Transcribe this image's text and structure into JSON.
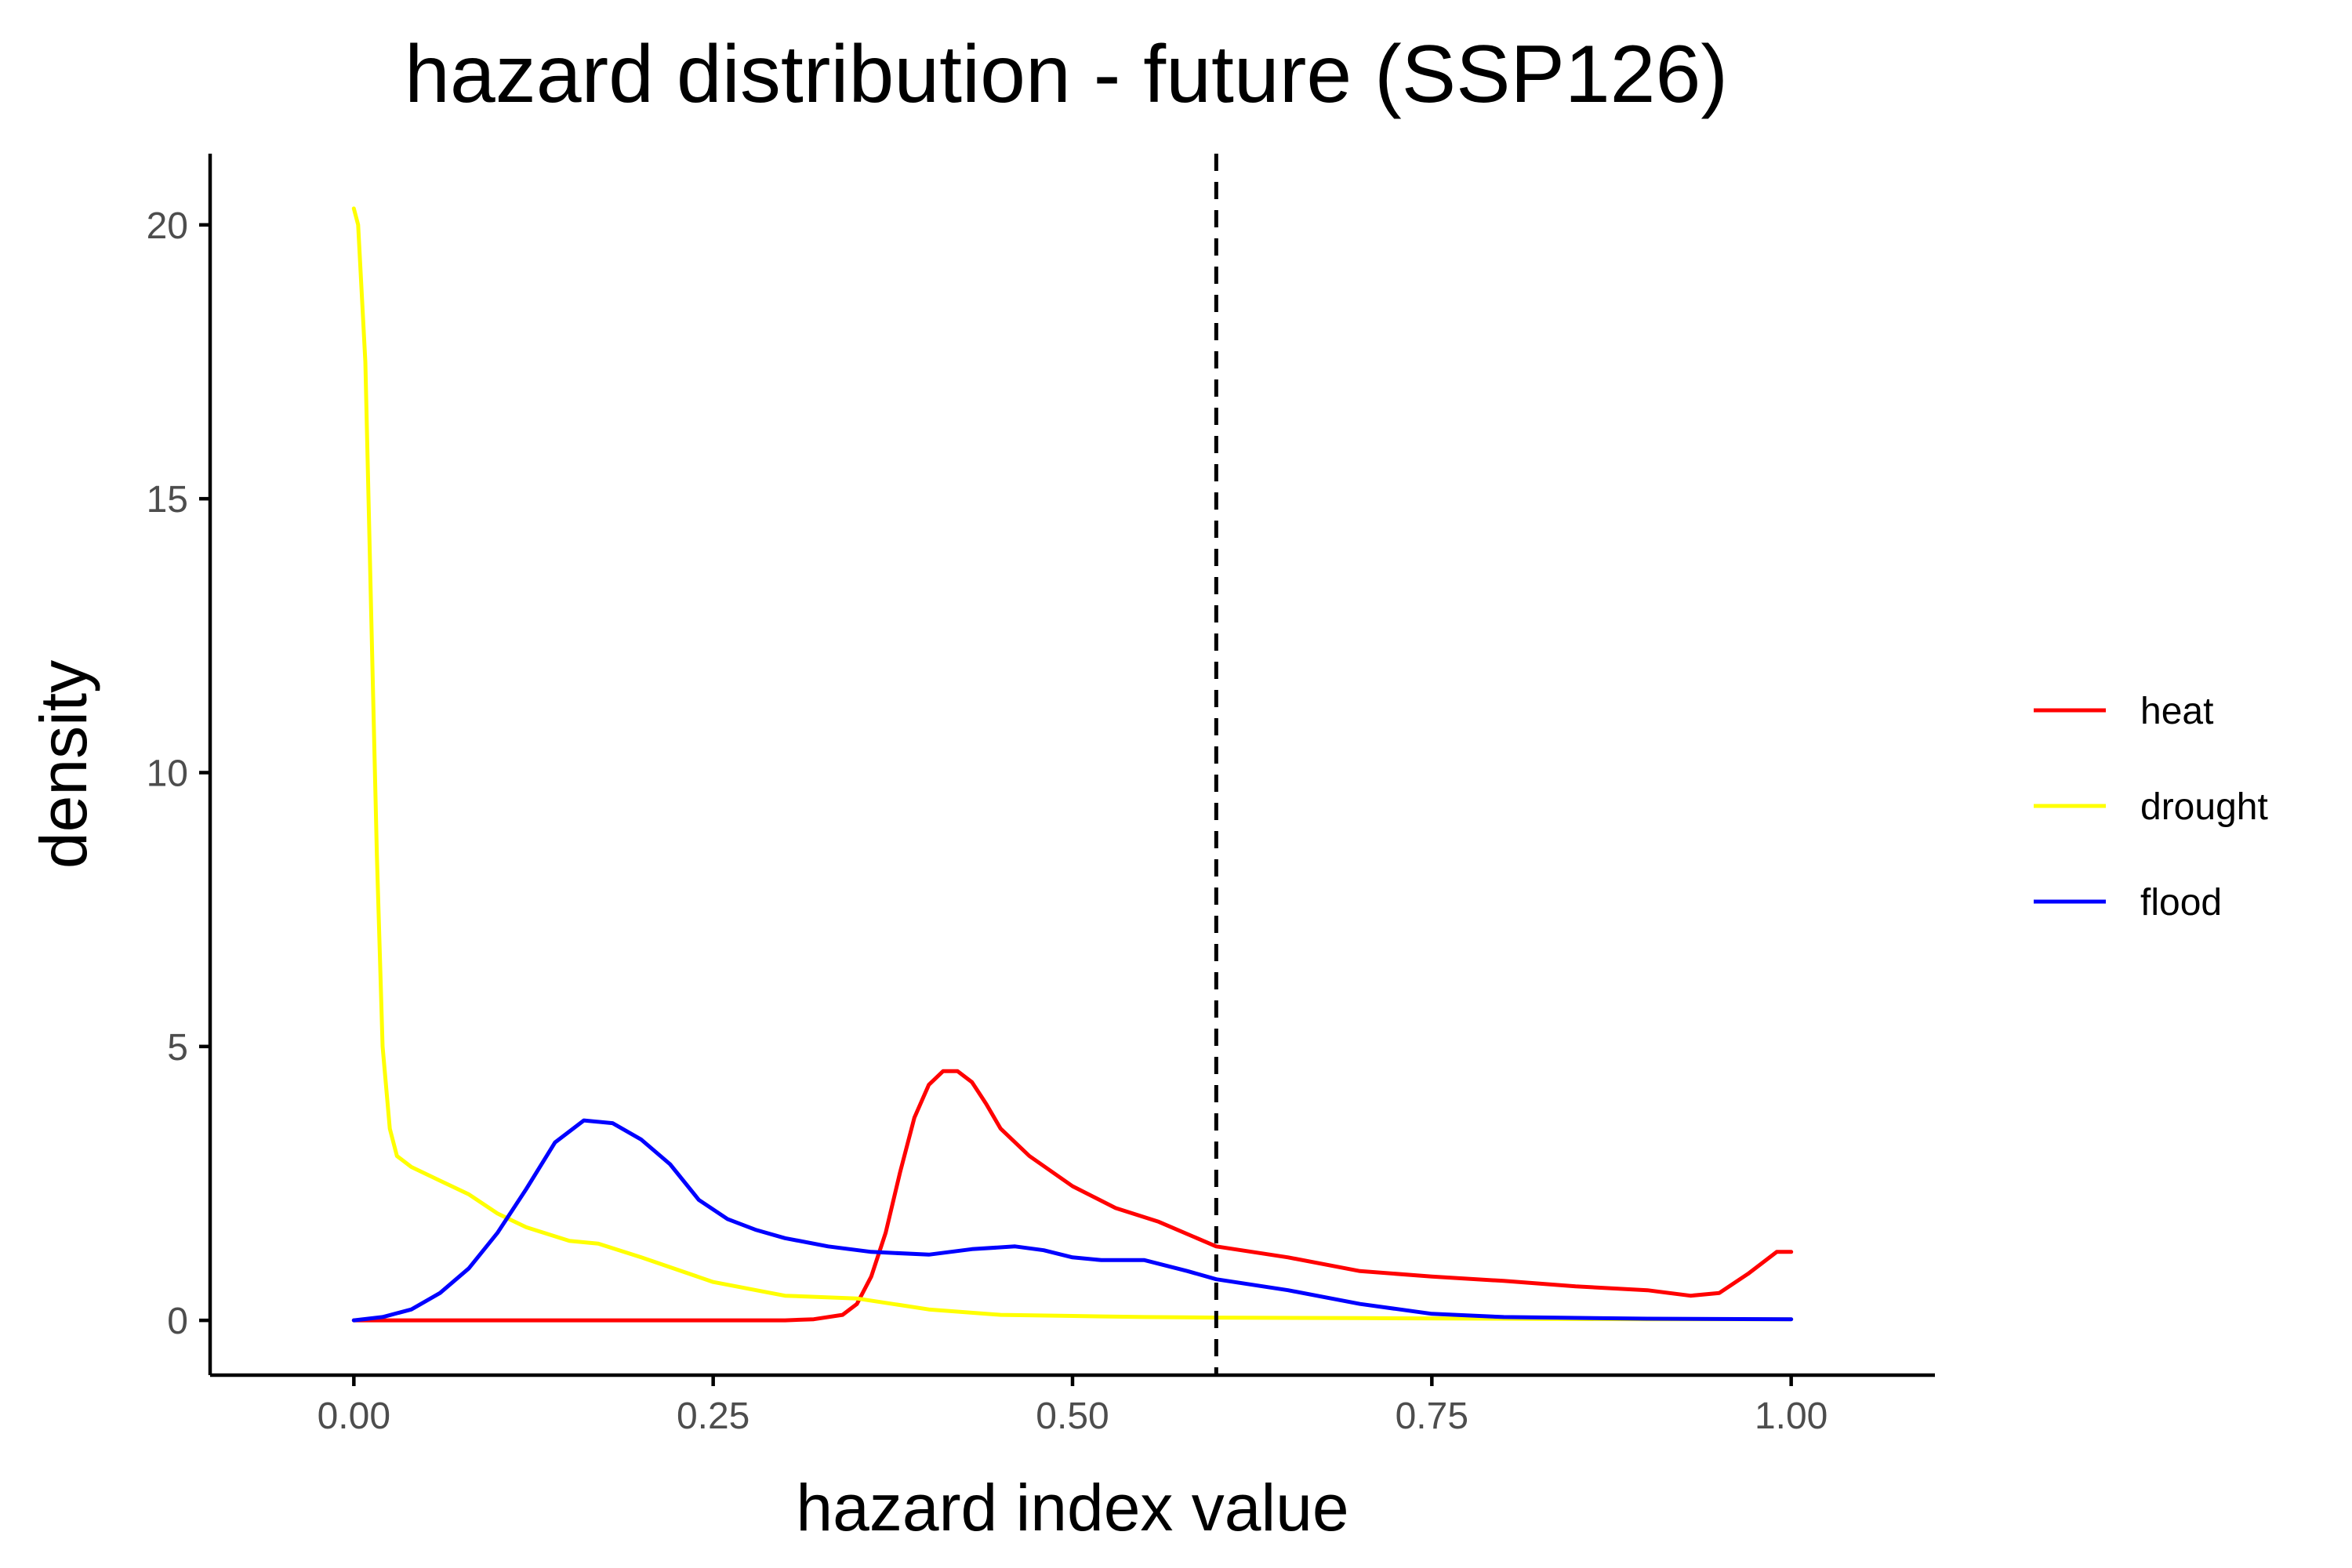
{
  "chart_data": {
    "type": "line",
    "title": "hazard distribution - future (SSP126)",
    "xlabel": "hazard index value",
    "ylabel": "density",
    "xlim": [
      -0.1,
      1.1
    ],
    "ylim": [
      -1.0,
      21.3
    ],
    "xticks": [
      0,
      0.25,
      0.5,
      0.75,
      1
    ],
    "xtick_labels": [
      "0.00",
      "0.25",
      "0.50",
      "0.75",
      "1.00"
    ],
    "yticks": [
      0,
      5,
      10,
      15,
      20
    ],
    "ytick_labels": [
      "0",
      "5",
      "10",
      "15",
      "20"
    ],
    "grid": false,
    "legend_position": "right",
    "reference_line": {
      "x": 0.6,
      "style": "dashed",
      "color": "#000000"
    },
    "series": [
      {
        "name": "heat",
        "color": "#ff0000",
        "x": [
          0,
          0.05,
          0.1,
          0.15,
          0.2,
          0.25,
          0.3,
          0.32,
          0.34,
          0.35,
          0.36,
          0.37,
          0.38,
          0.39,
          0.4,
          0.41,
          0.42,
          0.43,
          0.44,
          0.45,
          0.47,
          0.5,
          0.53,
          0.56,
          0.6,
          0.65,
          0.7,
          0.75,
          0.8,
          0.85,
          0.9,
          0.93,
          0.95,
          0.97,
          0.99,
          1.0
        ],
        "y": [
          0,
          0,
          0,
          0,
          0,
          0,
          0,
          0.02,
          0.1,
          0.3,
          0.8,
          1.6,
          2.7,
          3.7,
          4.3,
          4.55,
          4.55,
          4.35,
          3.95,
          3.5,
          3.0,
          2.45,
          2.05,
          1.8,
          1.35,
          1.15,
          0.9,
          0.8,
          0.72,
          0.62,
          0.55,
          0.45,
          0.5,
          0.85,
          1.25,
          1.25
        ]
      },
      {
        "name": "drought",
        "color": "#ffff00",
        "x": [
          0,
          0.003,
          0.008,
          0.012,
          0.016,
          0.02,
          0.025,
          0.03,
          0.04,
          0.06,
          0.08,
          0.1,
          0.12,
          0.15,
          0.17,
          0.2,
          0.25,
          0.3,
          0.35,
          0.4,
          0.45,
          0.5,
          0.55,
          0.6,
          0.7,
          0.8,
          0.9,
          1.0
        ],
        "y": [
          20.3,
          20.0,
          17.5,
          13.0,
          8.5,
          5.0,
          3.5,
          3.0,
          2.8,
          2.55,
          2.3,
          1.95,
          1.7,
          1.45,
          1.4,
          1.15,
          0.7,
          0.45,
          0.4,
          0.2,
          0.1,
          0.08,
          0.06,
          0.05,
          0.04,
          0.03,
          0.02,
          0.02
        ]
      },
      {
        "name": "flood",
        "color": "#0000ff",
        "x": [
          0,
          0.02,
          0.04,
          0.06,
          0.08,
          0.1,
          0.12,
          0.14,
          0.16,
          0.18,
          0.2,
          0.22,
          0.24,
          0.26,
          0.28,
          0.3,
          0.33,
          0.36,
          0.4,
          0.43,
          0.46,
          0.48,
          0.5,
          0.52,
          0.55,
          0.58,
          0.6,
          0.65,
          0.7,
          0.75,
          0.8,
          0.9,
          1.0
        ],
        "y": [
          0,
          0.06,
          0.2,
          0.5,
          0.95,
          1.6,
          2.4,
          3.25,
          3.65,
          3.6,
          3.3,
          2.85,
          2.2,
          1.85,
          1.65,
          1.5,
          1.35,
          1.25,
          1.2,
          1.3,
          1.35,
          1.28,
          1.15,
          1.1,
          1.1,
          0.9,
          0.75,
          0.55,
          0.3,
          0.12,
          0.06,
          0.03,
          0.02
        ]
      }
    ]
  }
}
